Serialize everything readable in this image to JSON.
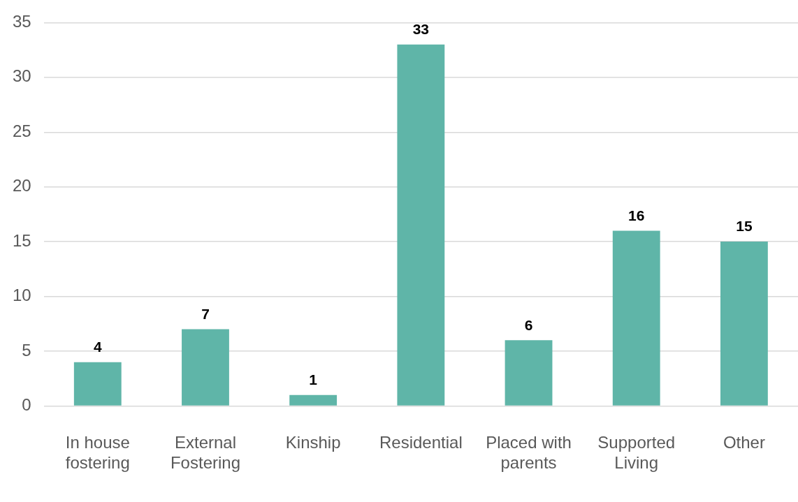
{
  "chart_data": {
    "type": "bar",
    "categories": [
      "In house fostering",
      "External Fostering",
      "Kinship",
      "Residential",
      "Placed with parents",
      "Supported Living",
      "Other"
    ],
    "values": [
      4,
      7,
      1,
      33,
      6,
      16,
      15
    ],
    "color": "#5fb5a8",
    "ylim": [
      0,
      35
    ],
    "yticks": [
      0,
      5,
      10,
      15,
      20,
      25,
      30,
      35
    ],
    "grid": "y",
    "data_labels": true,
    "legend": false
  }
}
